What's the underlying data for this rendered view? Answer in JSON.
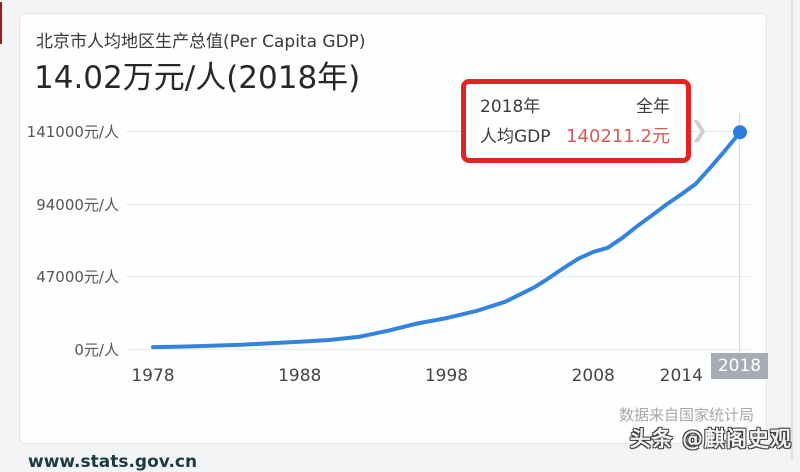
{
  "page": {
    "watermark": "头条 @麒阁史观",
    "partial_url": "www.stats.gov.cn"
  },
  "card": {
    "title": "北京市人均地区生产总值(Per Capita GDP)",
    "subtitle": "14.02万元/人(2018年)",
    "source_note": "数据来自国家统计局"
  },
  "tooltip": {
    "year": "2018年",
    "period": "全年",
    "metric": "人均GDP",
    "value": "140211.2元",
    "value_color": "#d85a56",
    "border_color": "#e42222",
    "chevron_icon": "❯"
  },
  "chart_data": {
    "type": "line",
    "title": "北京市人均地区生产总值(Per Capita GDP)",
    "subtitle": "14.02万元/人(2018年)",
    "unit": "元/人",
    "line_color": "#3583de",
    "marker_color": "#2e7ce0",
    "grid_color": "#e9eaec",
    "grid": "horizontal-only",
    "x_range": [
      1978,
      2018
    ],
    "y_range": [
      0,
      141000
    ],
    "y_ticks": [
      {
        "value": 0,
        "label": "0元/人"
      },
      {
        "value": 47000,
        "label": "47000元/人"
      },
      {
        "value": 94000,
        "label": "94000元/人"
      },
      {
        "value": 141000,
        "label": "141000元/人"
      }
    ],
    "x_ticks": [
      {
        "year": 1978,
        "label": "1978"
      },
      {
        "year": 1988,
        "label": "1988"
      },
      {
        "year": 1998,
        "label": "1998"
      },
      {
        "year": 2008,
        "label": "2008"
      },
      {
        "year": 2014,
        "label": "2014"
      }
    ],
    "highlighted_x_tick": "2018",
    "series": [
      {
        "name": "人均GDP",
        "points": [
          [
            1978,
            1257
          ],
          [
            1980,
            1582
          ],
          [
            1982,
            2100
          ],
          [
            1984,
            2800
          ],
          [
            1986,
            3700
          ],
          [
            1988,
            4700
          ],
          [
            1990,
            5800
          ],
          [
            1992,
            7800
          ],
          [
            1994,
            11800
          ],
          [
            1996,
            16500
          ],
          [
            1998,
            20000
          ],
          [
            2000,
            24500
          ],
          [
            2002,
            30500
          ],
          [
            2004,
            40000
          ],
          [
            2005,
            46000
          ],
          [
            2006,
            52500
          ],
          [
            2007,
            58500
          ],
          [
            2008,
            62800
          ],
          [
            2009,
            65500
          ],
          [
            2010,
            72000
          ],
          [
            2011,
            79500
          ],
          [
            2012,
            86500
          ],
          [
            2013,
            93500
          ],
          [
            2014,
            100000
          ],
          [
            2015,
            107000
          ],
          [
            2016,
            117500
          ],
          [
            2017,
            128500
          ],
          [
            2018,
            140211.2
          ]
        ]
      }
    ]
  }
}
